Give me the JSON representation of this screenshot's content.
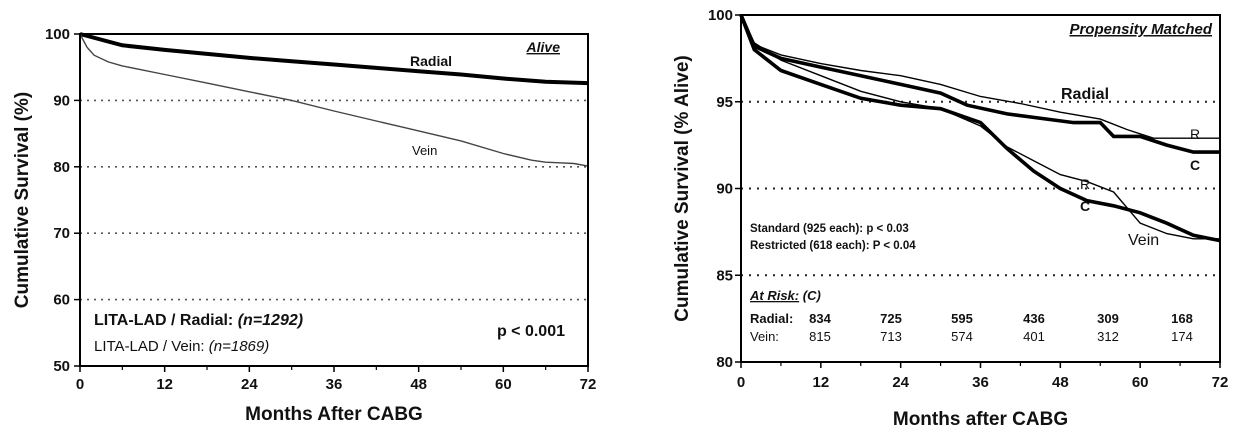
{
  "chart_data": [
    {
      "type": "line",
      "title": "Alive",
      "xlabel": "Months After CABG",
      "ylabel": "Cumulative Survival  (%)",
      "xlim": [
        0,
        72
      ],
      "ylim": [
        50,
        100
      ],
      "xticks": [
        "0",
        "12",
        "24",
        "36",
        "48",
        "60",
        "72"
      ],
      "yticks": [
        "50",
        "60",
        "70",
        "80",
        "90",
        "100"
      ],
      "gridlines": [
        60,
        70,
        80,
        90
      ],
      "series": [
        {
          "name": "Radial",
          "color": "#000000",
          "x": [
            0,
            6,
            12,
            18,
            24,
            30,
            36,
            42,
            48,
            54,
            60,
            66,
            72
          ],
          "y": [
            100,
            98.3,
            97.6,
            97.0,
            96.4,
            95.9,
            95.4,
            94.9,
            94.4,
            93.9,
            93.3,
            92.8,
            92.6
          ]
        },
        {
          "name": "Vein",
          "color": "#444444",
          "x": [
            0,
            1,
            2,
            4,
            6,
            12,
            18,
            24,
            30,
            36,
            42,
            48,
            54,
            60,
            64,
            66,
            68,
            70,
            72
          ],
          "y": [
            100,
            98.0,
            96.8,
            95.8,
            95.2,
            93.9,
            92.6,
            91.3,
            90.0,
            88.4,
            86.9,
            85.4,
            83.9,
            82.0,
            81.0,
            80.7,
            80.6,
            80.5,
            80.1
          ]
        }
      ],
      "annotations": {
        "radial_label": "Radial",
        "vein_label": "Vein",
        "legend_radial_name": "LITA-LAD / Radial:",
        "legend_radial_n": "(n=1292)",
        "legend_vein_name": "LITA-LAD / Vein:",
        "legend_vein_n": "(n=1869)",
        "pvalue": "p < 0.001"
      }
    },
    {
      "type": "line",
      "title": "Propensity Matched",
      "xlabel": "Months after CABG",
      "ylabel": "Cumulative Survival  (% Alive)",
      "xlim": [
        0,
        72
      ],
      "ylim": [
        80,
        100
      ],
      "xticks": [
        "0",
        "12",
        "24",
        "36",
        "48",
        "60",
        "72"
      ],
      "yticks": [
        "80",
        "85",
        "90",
        "95",
        "100"
      ],
      "gridlines": [
        85,
        90,
        95
      ],
      "series": [
        {
          "name": "Radial (C)",
          "color": "#000000",
          "x": [
            0,
            2,
            6,
            12,
            18,
            24,
            30,
            34,
            40,
            46,
            50,
            54,
            56,
            60,
            64,
            68,
            72
          ],
          "y": [
            100,
            98.2,
            97.5,
            97.0,
            96.5,
            96.0,
            95.5,
            94.8,
            94.3,
            94.0,
            93.8,
            93.8,
            93.0,
            93.0,
            92.5,
            92.1,
            92.1
          ]
        },
        {
          "name": "Radial (R)",
          "color": "#000000",
          "x": [
            0,
            2,
            6,
            12,
            18,
            24,
            30,
            36,
            42,
            48,
            54,
            58,
            62,
            66,
            72
          ],
          "y": [
            100,
            98.3,
            97.7,
            97.2,
            96.8,
            96.5,
            96.0,
            95.3,
            94.9,
            94.4,
            94.0,
            93.4,
            92.9,
            92.9,
            92.9
          ]
        },
        {
          "name": "Vein (C)",
          "color": "#000000",
          "x": [
            0,
            2,
            6,
            12,
            18,
            24,
            30,
            36,
            40,
            44,
            48,
            52,
            56,
            60,
            64,
            68,
            72
          ],
          "y": [
            100,
            98.0,
            96.8,
            96.0,
            95.2,
            94.8,
            94.6,
            93.8,
            92.3,
            91.0,
            90.0,
            89.3,
            89.0,
            88.6,
            88.0,
            87.3,
            87.0
          ]
        },
        {
          "name": "Vein (R)",
          "color": "#000000",
          "x": [
            0,
            2,
            6,
            12,
            18,
            24,
            30,
            36,
            40,
            44,
            48,
            52,
            56,
            60,
            64,
            68,
            72
          ],
          "y": [
            100,
            98.4,
            97.4,
            96.5,
            95.6,
            95.0,
            94.6,
            93.6,
            92.4,
            91.6,
            90.8,
            90.4,
            89.8,
            88.0,
            87.4,
            87.1,
            87.1
          ]
        }
      ],
      "annotations": {
        "radial_label": "Radial",
        "vein_label": "Vein",
        "c_label": "C",
        "r_label": "R",
        "standard_line": "Standard (925 each): p < 0.03",
        "restricted_line": "Restricted (618 each): P < 0.04",
        "at_risk_title": "At Risk:",
        "at_risk_suffix": "(C)"
      },
      "at_risk": [
        {
          "label": "Radial:",
          "values": [
            "834",
            "725",
            "595",
            "436",
            "309",
            "168"
          ]
        },
        {
          "label": "Vein:",
          "values": [
            "815",
            "713",
            "574",
            "401",
            "312",
            "174"
          ]
        }
      ]
    }
  ]
}
